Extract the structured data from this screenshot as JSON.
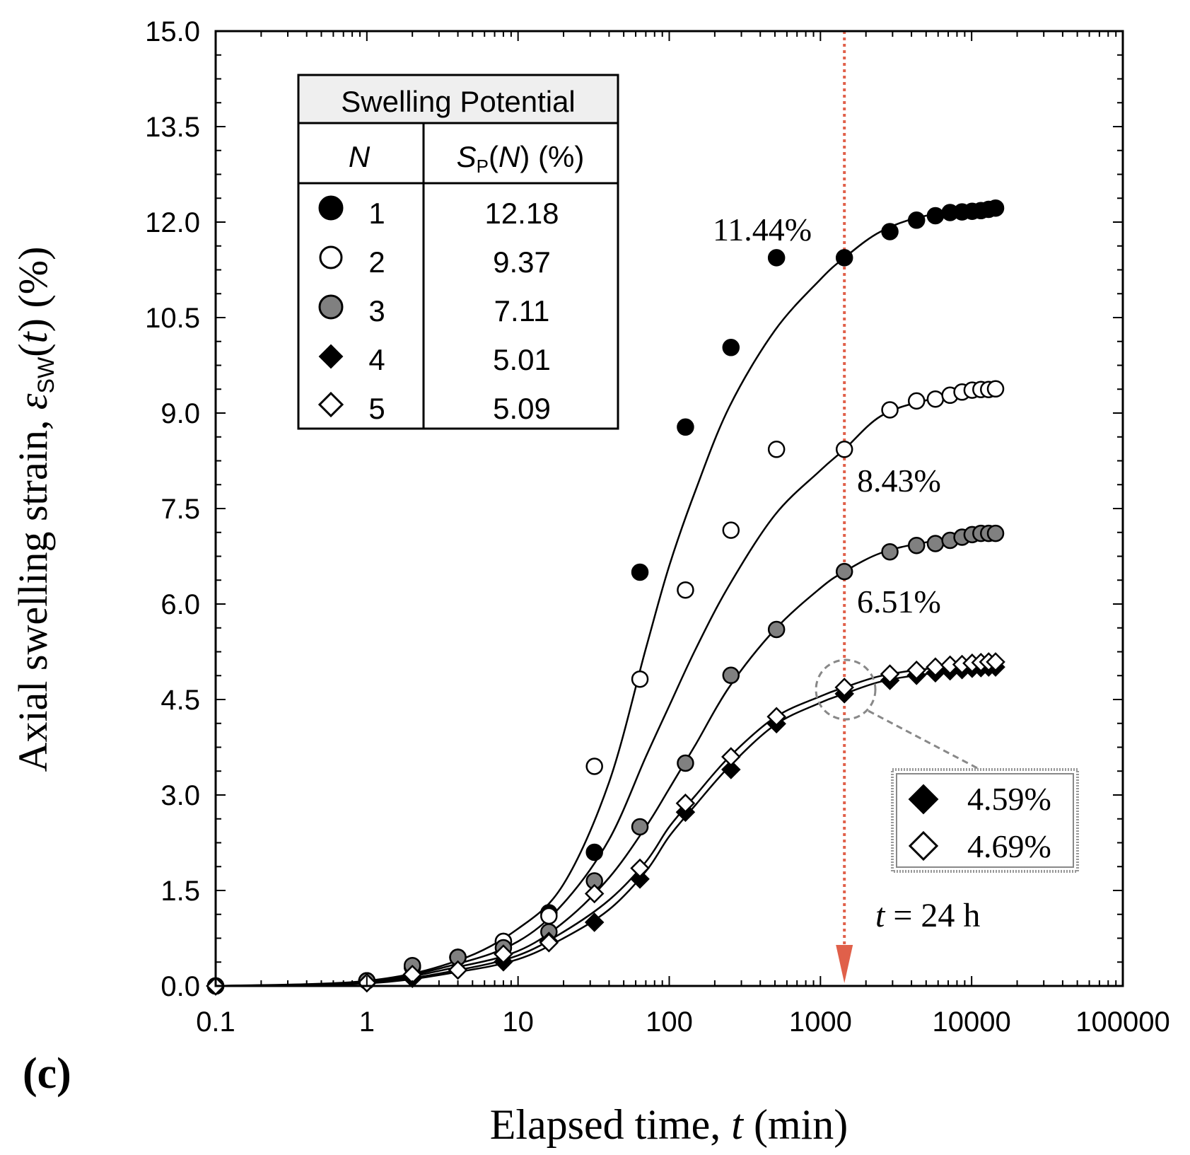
{
  "panel_label": "(c)",
  "chart_data": {
    "type": "scatter",
    "x_scale": "log",
    "xlabel_prefix": "Elapsed time, ",
    "xlabel_var": "t",
    "xlabel_suffix": " (min)",
    "ylabel_prefix": "Axial swelling strain, ",
    "ylabel_eps": "ε",
    "ylabel_sub": "SW",
    "ylabel_open": "(",
    "ylabel_var": "t",
    "ylabel_suffix": ") (%)",
    "xlim": [
      0.1,
      100000
    ],
    "ylim": [
      0.0,
      15.0
    ],
    "x_ticks": [
      0.1,
      1,
      10,
      100,
      1000,
      10000,
      100000
    ],
    "x_tick_labels": [
      "0.1",
      "1",
      "10",
      "100",
      "1000",
      "10000",
      "100000"
    ],
    "y_ticks": [
      0,
      1.5,
      3,
      4.5,
      6,
      7.5,
      9,
      10.5,
      12,
      13.5,
      15
    ],
    "y_tick_labels": [
      "0.0",
      "1.5",
      "3.0",
      "4.5",
      "6.0",
      "7.5",
      "9.0",
      "10.5",
      "12.0",
      "13.5",
      "15.0"
    ],
    "x": [
      0.1,
      1,
      2,
      4,
      8,
      16,
      32,
      64,
      128,
      256,
      512,
      1440,
      2880,
      4320,
      5760,
      7200,
      8640,
      10080,
      11520,
      12960,
      14400
    ],
    "series": [
      {
        "name": "1",
        "marker": "circle",
        "fill": "#000000",
        "values": [
          0.0,
          0.08,
          0.3,
          0.45,
          0.7,
          1.15,
          2.1,
          6.5,
          8.78,
          10.03,
          11.44,
          11.44,
          11.85,
          12.03,
          12.1,
          12.15,
          12.16,
          12.17,
          12.18,
          12.2,
          12.22
        ]
      },
      {
        "name": "2",
        "marker": "circle",
        "fill": "#ffffff",
        "values": [
          0.0,
          0.08,
          0.3,
          0.45,
          0.7,
          1.1,
          3.45,
          4.82,
          6.22,
          7.16,
          8.43,
          8.43,
          9.05,
          9.19,
          9.22,
          9.28,
          9.33,
          9.36,
          9.37,
          9.37,
          9.38
        ]
      },
      {
        "name": "3",
        "marker": "circle",
        "fill": "#808080",
        "values": [
          0.0,
          0.08,
          0.32,
          0.45,
          0.6,
          0.85,
          1.65,
          2.5,
          3.5,
          4.88,
          5.6,
          6.51,
          6.82,
          6.92,
          6.95,
          7.0,
          7.05,
          7.09,
          7.11,
          7.11,
          7.11
        ]
      },
      {
        "name": "4",
        "marker": "diamond",
        "fill": "#000000",
        "values": [
          0.0,
          0.05,
          0.12,
          0.25,
          0.38,
          0.7,
          1.0,
          1.68,
          2.73,
          3.4,
          4.12,
          4.59,
          4.8,
          4.88,
          4.92,
          4.95,
          4.97,
          4.99,
          5.0,
          5.01,
          5.01
        ]
      },
      {
        "name": "5",
        "marker": "diamond",
        "fill": "#ffffff",
        "values": [
          0.0,
          0.05,
          0.18,
          0.25,
          0.5,
          0.68,
          1.45,
          1.85,
          2.87,
          3.6,
          4.23,
          4.69,
          4.9,
          4.96,
          5.01,
          5.04,
          5.05,
          5.07,
          5.08,
          5.09,
          5.09
        ]
      }
    ],
    "fit_curves": [
      {
        "series": "1",
        "points": [
          [
            0.1,
            0.0
          ],
          [
            1,
            0.08
          ],
          [
            4,
            0.4
          ],
          [
            10,
            0.9
          ],
          [
            20,
            1.6
          ],
          [
            40,
            3.2
          ],
          [
            70,
            5.3
          ],
          [
            100,
            6.6
          ],
          [
            150,
            7.8
          ],
          [
            250,
            9.1
          ],
          [
            500,
            10.3
          ],
          [
            1000,
            11.1
          ],
          [
            1440,
            11.44
          ],
          [
            2500,
            11.85
          ],
          [
            5000,
            12.1
          ],
          [
            14400,
            12.22
          ]
        ]
      },
      {
        "series": "2",
        "points": [
          [
            0.1,
            0.0
          ],
          [
            1,
            0.07
          ],
          [
            4,
            0.35
          ],
          [
            10,
            0.7
          ],
          [
            20,
            1.3
          ],
          [
            40,
            2.3
          ],
          [
            70,
            3.6
          ],
          [
            100,
            4.4
          ],
          [
            150,
            5.3
          ],
          [
            250,
            6.3
          ],
          [
            500,
            7.4
          ],
          [
            1000,
            8.1
          ],
          [
            1440,
            8.43
          ],
          [
            2500,
            8.95
          ],
          [
            5000,
            9.2
          ],
          [
            14400,
            9.38
          ]
        ]
      },
      {
        "series": "3",
        "points": [
          [
            0.1,
            0.0
          ],
          [
            1,
            0.06
          ],
          [
            4,
            0.3
          ],
          [
            10,
            0.55
          ],
          [
            20,
            1.0
          ],
          [
            40,
            1.7
          ],
          [
            70,
            2.5
          ],
          [
            100,
            3.1
          ],
          [
            150,
            3.8
          ],
          [
            250,
            4.7
          ],
          [
            500,
            5.6
          ],
          [
            1000,
            6.25
          ],
          [
            1440,
            6.51
          ],
          [
            2500,
            6.8
          ],
          [
            5000,
            6.97
          ],
          [
            14400,
            7.11
          ]
        ]
      },
      {
        "series": "4",
        "points": [
          [
            0.1,
            0.0
          ],
          [
            1,
            0.04
          ],
          [
            4,
            0.22
          ],
          [
            10,
            0.42
          ],
          [
            20,
            0.75
          ],
          [
            40,
            1.2
          ],
          [
            70,
            1.8
          ],
          [
            100,
            2.35
          ],
          [
            150,
            2.85
          ],
          [
            250,
            3.45
          ],
          [
            500,
            4.1
          ],
          [
            1000,
            4.45
          ],
          [
            1440,
            4.59
          ],
          [
            2500,
            4.78
          ],
          [
            5000,
            4.9
          ],
          [
            14400,
            5.01
          ]
        ]
      },
      {
        "series": "5",
        "points": [
          [
            0.1,
            0.0
          ],
          [
            1,
            0.05
          ],
          [
            4,
            0.25
          ],
          [
            10,
            0.48
          ],
          [
            20,
            0.85
          ],
          [
            40,
            1.35
          ],
          [
            70,
            1.95
          ],
          [
            100,
            2.5
          ],
          [
            150,
            3.0
          ],
          [
            250,
            3.6
          ],
          [
            500,
            4.22
          ],
          [
            1000,
            4.55
          ],
          [
            1440,
            4.69
          ],
          [
            2500,
            4.87
          ],
          [
            5000,
            4.98
          ],
          [
            14400,
            5.09
          ]
        ]
      }
    ],
    "vertical_line": {
      "x": 1440,
      "color": "#e0604a"
    },
    "vline_label_var": "t",
    "vline_label_rest": " = 24 h",
    "annotations": [
      "11.44%",
      "8.43%",
      "6.51%"
    ],
    "inset": {
      "items": [
        {
          "marker": "diamond",
          "fill": "#000000",
          "text": "4.59%"
        },
        {
          "marker": "diamond",
          "fill": "#ffffff",
          "text": "4.69%"
        }
      ]
    },
    "legend": {
      "title": "Swelling Potential",
      "col1_header": "N",
      "col2_header_S": "S",
      "col2_header_sub": "P",
      "col2_header_open": "(",
      "col2_header_N": "N",
      "col2_header_tail": ") (%)",
      "rows": [
        {
          "n": "1",
          "value": "12.18"
        },
        {
          "n": "2",
          "value": "9.37"
        },
        {
          "n": "3",
          "value": "7.11"
        },
        {
          "n": "4",
          "value": "5.01"
        },
        {
          "n": "5",
          "value": "5.09"
        }
      ]
    }
  }
}
